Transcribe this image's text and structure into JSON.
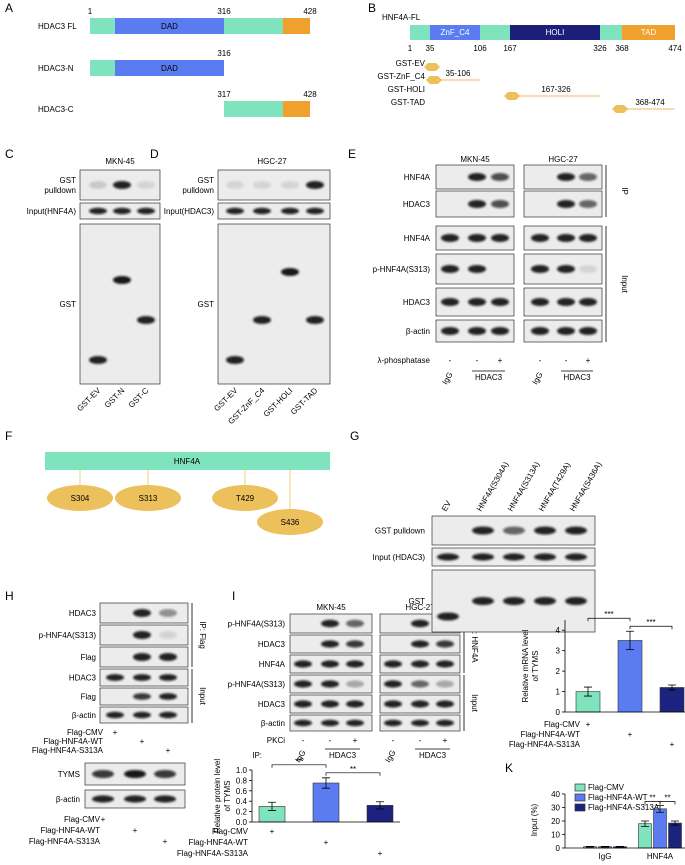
{
  "panel_labels": [
    "A",
    "B",
    "C",
    "D",
    "E",
    "F",
    "G",
    "H",
    "I",
    "J",
    "K"
  ],
  "A": {
    "constructs": [
      {
        "name": "HDAC3 FL",
        "domain": "DAD",
        "positions": [
          1,
          316,
          428
        ]
      },
      {
        "name": "HDAC3-N",
        "domain": "DAD",
        "positions": [
          316
        ]
      },
      {
        "name": "HDAC3-C",
        "positions": [
          317,
          428
        ]
      }
    ]
  },
  "B": {
    "title": "HNF4A-FL",
    "domains": [
      "ZnF_C4",
      "HOLI",
      "TAD"
    ],
    "positions": [
      1,
      35,
      106,
      167,
      326,
      368,
      474
    ],
    "constructs": [
      {
        "name": "GST-EV"
      },
      {
        "name": "GST-ZnF_C4",
        "range": "35-106"
      },
      {
        "name": "GST-HOLI",
        "range": "167-326"
      },
      {
        "name": "GST-TAD",
        "range": "368-474"
      }
    ]
  },
  "C": {
    "cell_line": "MKN-45",
    "rows": [
      [
        "GST",
        "pulldown"
      ],
      [
        "Input(HNF4A)"
      ],
      [
        "GST"
      ]
    ],
    "lanes": [
      "GST-EV",
      "GST-N",
      "GST-C"
    ]
  },
  "D": {
    "cell_line": "HGC-27",
    "rows": [
      [
        "GST",
        "pulldown"
      ],
      [
        "Input(HDAC3)"
      ],
      [
        "GST"
      ]
    ],
    "lanes": [
      "GST-EV",
      "GST-ZnF_C4",
      "GST-HOLI",
      "GST-TAD"
    ]
  },
  "E": {
    "cell_lines": [
      "MKN-45",
      "HGC-27"
    ],
    "rows": [
      "HNF4A",
      "HDAC3",
      "HNF4A",
      "p-HNF4A(S313)",
      "HDAC3",
      "β-actin"
    ],
    "brackets": [
      "IP",
      "Input"
    ],
    "treatment": "λ-phosphatase",
    "treatment_signs": [
      "-",
      "-",
      "+",
      "-",
      "-",
      "+"
    ],
    "lanes": [
      "IgG",
      "HDAC3",
      "IgG",
      "HDAC3"
    ]
  },
  "F": {
    "protein": "HNF4A",
    "sites": [
      "S304",
      "S313",
      "T429",
      "S436"
    ]
  },
  "G": {
    "lanes": [
      "EV",
      "HNF4A(S304A)",
      "HNF4A(S313A)",
      "HNF4A(T429A)",
      "HNF4A(S436A)"
    ],
    "rows": [
      "GST pulldown",
      "Input (HDAC3)",
      "GST"
    ]
  },
  "H": {
    "rows": [
      "HDAC3",
      "p-HNF4A(S313)",
      "Flag",
      "HDAC3",
      "Flag",
      "β-actin"
    ],
    "brackets": [
      "IP: Flag",
      "Input"
    ],
    "conditions": [
      "Flag-CMV",
      "Flag-HNF4A-WT",
      "Flag-HNF4A-S313A"
    ],
    "signs": [
      "+",
      "+",
      "+"
    ]
  },
  "H_tyms": {
    "rows": [
      "TYMS",
      "β-actin"
    ],
    "conditions": [
      "Flag-CMV",
      "Flag-HNF4A-WT",
      "Flag-HNF4A-S313A"
    ],
    "signs": [
      "+",
      "+",
      "+"
    ]
  },
  "I": {
    "cell_lines": [
      "MKN-45",
      "HGC-27"
    ],
    "rows": [
      "p-HNF4A(S313)",
      "HDAC3",
      "HNF4A",
      "p-HNF4A(S313)",
      "HDAC3",
      "β-actin"
    ],
    "brackets": [
      "IP: HNF4A",
      "Input"
    ],
    "treatment": "PKCi",
    "treatment_signs": [
      "-",
      "-",
      "+",
      "-",
      "-",
      "+"
    ],
    "ip_label": "IP:",
    "lanes": [
      "IgG",
      "HDAC3",
      "IgG",
      "HDAC3"
    ]
  },
  "chart_data": [
    {
      "type": "bar",
      "ylabel": [
        "Relative protein level",
        "of TYMS"
      ],
      "values": [
        0.3,
        0.75,
        0.32
      ],
      "errors": [
        0.08,
        0.1,
        0.07
      ],
      "colors": [
        "#7fe3bd",
        "#5b7cf0",
        "#1c237e"
      ],
      "ylim": [
        0,
        1
      ],
      "yticks": [
        {
          "value": 0,
          "label": "0.0"
        },
        0.2,
        0.4,
        0.6,
        0.8,
        {
          "value": 1,
          "label": "1.0"
        }
      ],
      "significance": [
        "**",
        "**"
      ],
      "conditions": [
        "Flag-CMV",
        "Flag-HNF4A-WT",
        "Flag-HNF4A-S313A"
      ],
      "signs": [
        "+",
        "+",
        "+"
      ]
    },
    {
      "type": "bar",
      "ylabel": [
        "Relative mRNA level",
        "of TYMS"
      ],
      "values": [
        1.0,
        3.5,
        1.2
      ],
      "errors": [
        0.22,
        0.45,
        0.12
      ],
      "colors": [
        "#7fe3bd",
        "#5b7cf0",
        "#1c237e"
      ],
      "ylim": [
        0,
        4.5
      ],
      "yticks": [
        0,
        1,
        2,
        3,
        4
      ],
      "significance": [
        "***",
        "***"
      ],
      "conditions": [
        "Flag-CMV",
        "Flag-HNF4A-WT",
        "Flag-HNF4A-S313A"
      ],
      "signs": [
        "+",
        "+",
        "+"
      ]
    },
    {
      "type": "grouped_bar",
      "ylabel": [
        "Input (%)"
      ],
      "categories": [
        "IgG",
        "HNF4A"
      ],
      "ylim": [
        0,
        40
      ],
      "yticks": [
        0,
        10,
        20,
        30,
        40
      ],
      "series": [
        {
          "name": "Flag-CMV",
          "color": "#7fe3bd",
          "values": [
            1.0,
            18.0
          ],
          "errors": [
            0.2,
            2.0
          ]
        },
        {
          "name": "Flag-HNF4A-WT",
          "color": "#5b7cf0",
          "values": [
            1.0,
            29.0
          ],
          "errors": [
            0.2,
            2.5
          ]
        },
        {
          "name": "Flag-HNF4A-S313A",
          "color": "#1c237e",
          "values": [
            1.0,
            18.5
          ],
          "errors": [
            0.2,
            1.5
          ]
        }
      ],
      "significance": [
        "**",
        "**"
      ]
    }
  ]
}
